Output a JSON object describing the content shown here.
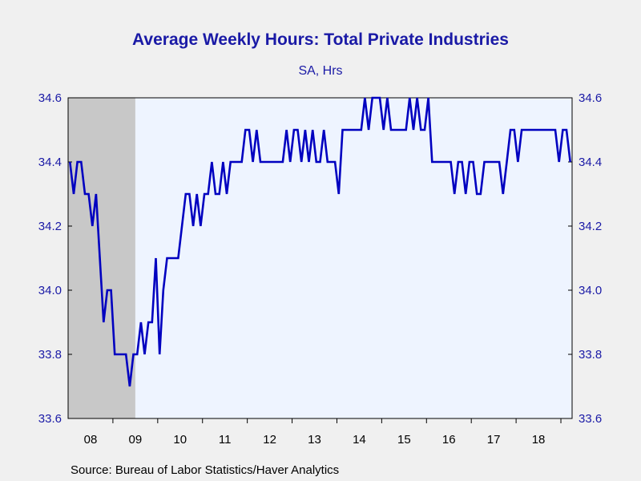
{
  "chart_data": {
    "type": "line",
    "title": "Average Weekly Hours: Total Private Industries",
    "subtitle": "SA, Hrs",
    "source": "Source:  Bureau of Labor Statistics/Haver Analytics",
    "x_start": "2008-01",
    "x_ticks": [
      "08",
      "09",
      "10",
      "11",
      "12",
      "13",
      "14",
      "15",
      "16",
      "17",
      "18"
    ],
    "y_ticks": [
      "34.6",
      "34.4",
      "34.2",
      "34.0",
      "33.8",
      "33.6"
    ],
    "ylim": [
      33.6,
      34.6
    ],
    "grid": false,
    "recession_shading": [
      "2008-01",
      "2009-06"
    ],
    "colors": {
      "line": "#0000c0",
      "recession": "#c8c8c8",
      "plot_bg": "#eef4ff",
      "text": "#1a1aa6"
    },
    "series": [
      {
        "values": [
          34.4,
          34.3,
          34.4,
          34.4,
          34.3,
          34.3,
          34.2,
          34.3,
          34.1,
          33.9,
          34.0,
          34.0,
          33.8,
          33.8,
          33.8,
          33.8,
          33.7,
          33.8,
          33.8,
          33.9,
          33.8,
          33.9,
          33.9,
          34.1,
          33.8,
          34.0,
          34.1,
          34.1,
          34.1,
          34.1,
          34.2,
          34.3,
          34.3,
          34.2,
          34.3,
          34.2,
          34.3,
          34.3,
          34.4,
          34.3,
          34.3,
          34.4,
          34.3,
          34.4,
          34.4,
          34.4,
          34.4,
          34.5,
          34.5,
          34.4,
          34.5,
          34.4,
          34.4,
          34.4,
          34.4,
          34.4,
          34.4,
          34.4,
          34.5,
          34.4,
          34.5,
          34.5,
          34.4,
          34.5,
          34.4,
          34.5,
          34.4,
          34.4,
          34.5,
          34.4,
          34.4,
          34.4,
          34.3,
          34.5,
          34.5,
          34.5,
          34.5,
          34.5,
          34.5,
          34.6,
          34.5,
          34.6,
          34.6,
          34.6,
          34.5,
          34.6,
          34.5,
          34.5,
          34.5,
          34.5,
          34.5,
          34.6,
          34.5,
          34.6,
          34.5,
          34.5,
          34.6,
          34.4,
          34.4,
          34.4,
          34.4,
          34.4,
          34.4,
          34.3,
          34.4,
          34.4,
          34.3,
          34.4,
          34.4,
          34.3,
          34.3,
          34.4,
          34.4,
          34.4,
          34.4,
          34.4,
          34.3,
          34.4,
          34.5,
          34.5,
          34.4,
          34.5,
          34.5,
          34.5,
          34.5,
          34.5,
          34.5,
          34.5,
          34.5,
          34.5,
          34.5,
          34.4,
          34.5,
          34.5,
          34.4
        ]
      }
    ]
  }
}
